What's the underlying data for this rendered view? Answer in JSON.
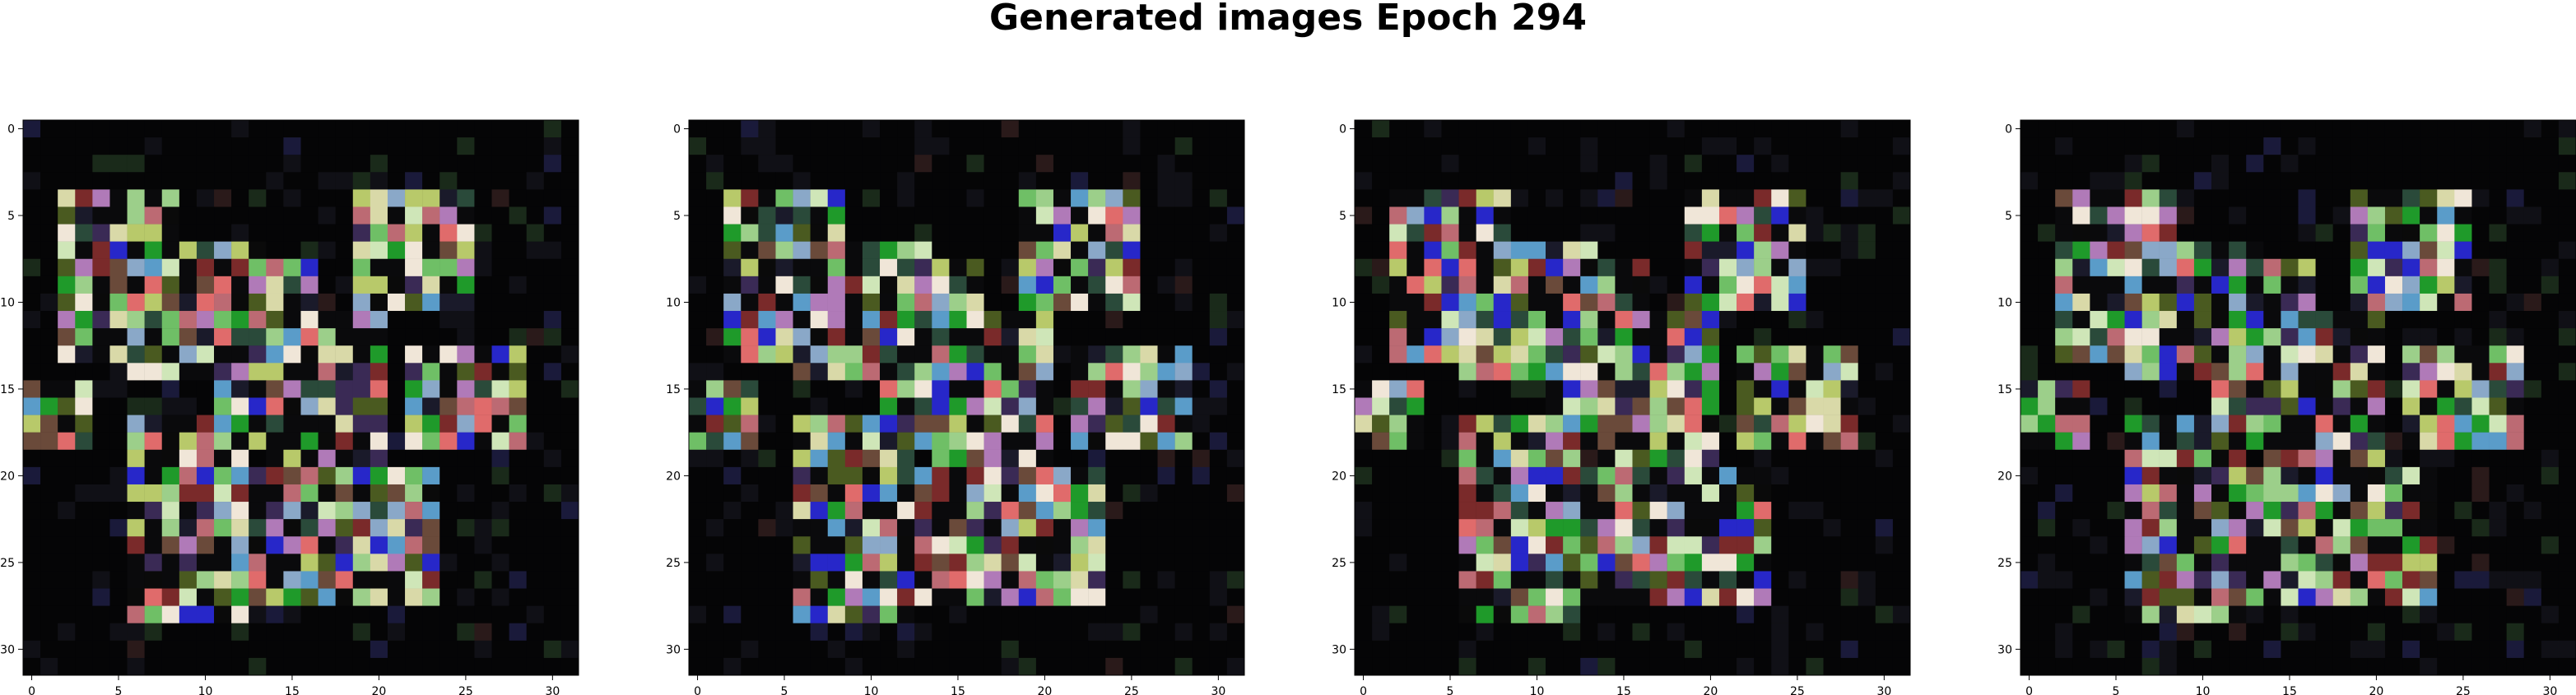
{
  "figure": {
    "title": "Generated images Epoch 294"
  },
  "chart_data": [
    {
      "type": "heatmap",
      "xlim": [
        -0.5,
        31.5
      ],
      "ylim": [
        31.5,
        -0.5
      ],
      "x_ticks": [
        0,
        5,
        10,
        15,
        20,
        25,
        30
      ],
      "y_ticks": [
        0,
        5,
        10,
        15,
        20,
        25,
        30
      ],
      "x_tick_labels": [
        "0",
        "5",
        "10",
        "15",
        "20",
        "25",
        "30"
      ],
      "y_tick_labels": [
        "0",
        "5",
        "10",
        "15",
        "20",
        "25",
        "30"
      ]
    },
    {
      "type": "heatmap",
      "xlim": [
        -0.5,
        31.5
      ],
      "ylim": [
        31.5,
        -0.5
      ],
      "x_ticks": [
        0,
        5,
        10,
        15,
        20,
        25,
        30
      ],
      "y_ticks": [
        0,
        5,
        10,
        15,
        20,
        25,
        30
      ],
      "x_tick_labels": [
        "0",
        "5",
        "10",
        "15",
        "20",
        "25",
        "30"
      ],
      "y_tick_labels": [
        "0",
        "5",
        "10",
        "15",
        "20",
        "25",
        "30"
      ]
    },
    {
      "type": "heatmap",
      "xlim": [
        -0.5,
        31.5
      ],
      "ylim": [
        31.5,
        -0.5
      ],
      "x_ticks": [
        0,
        5,
        10,
        15,
        20,
        25,
        30
      ],
      "y_ticks": [
        0,
        5,
        10,
        15,
        20,
        25,
        30
      ],
      "x_tick_labels": [
        "0",
        "5",
        "10",
        "15",
        "20",
        "25",
        "30"
      ],
      "y_tick_labels": [
        "0",
        "5",
        "10",
        "15",
        "20",
        "25",
        "30"
      ]
    },
    {
      "type": "heatmap",
      "xlim": [
        -0.5,
        31.5
      ],
      "ylim": [
        31.5,
        -0.5
      ],
      "x_ticks": [
        0,
        5,
        10,
        15,
        20,
        25,
        30
      ],
      "y_ticks": [
        0,
        5,
        10,
        15,
        20,
        25,
        30
      ],
      "x_tick_labels": [
        "0",
        "5",
        "10",
        "15",
        "20",
        "25",
        "30"
      ],
      "y_tick_labels": [
        "0",
        "5",
        "10",
        "15",
        "20",
        "25",
        "30"
      ]
    }
  ],
  "colors": {
    "background": "#ffffff",
    "axis": "#000000",
    "palette": [
      "#f0e6d8",
      "#d9d9a8",
      "#cfe6b8",
      "#9ccf8a",
      "#6fbf66",
      "#b8c96a",
      "#e06b6b",
      "#bc6a73",
      "#b07ab8",
      "#8aa8c8",
      "#5a9cc9",
      "#2727c9",
      "#1f9a2a",
      "#4a5a20",
      "#6a4a3a",
      "#7a2a2a",
      "#3a2a55",
      "#2a4a3a",
      "#1a1a2a",
      "#0a0a0a"
    ]
  }
}
